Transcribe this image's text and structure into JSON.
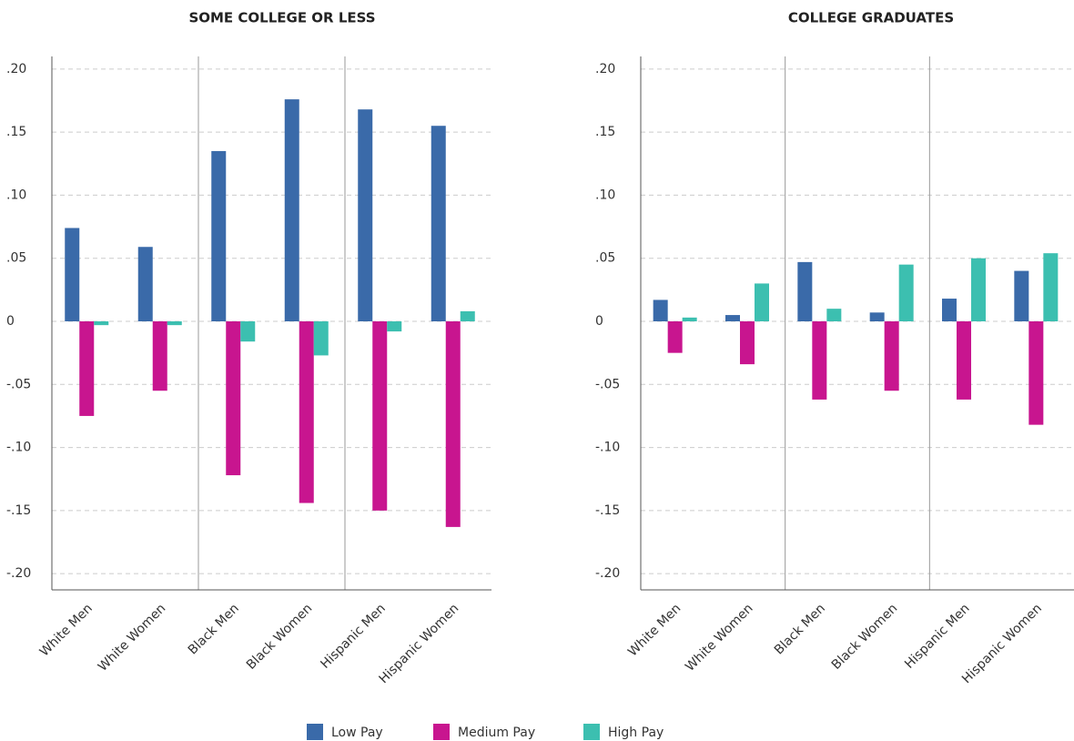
{
  "chart_data": [
    {
      "type": "bar",
      "title": "SOME COLLEGE OR LESS",
      "categories": [
        "White Men",
        "White Women",
        "Black Men",
        "Black Women",
        "Hispanic Men",
        "Hispanic Women"
      ],
      "series": [
        {
          "name": "Low Pay",
          "color": "#3a6aa9",
          "values": [
            0.074,
            0.059,
            0.135,
            0.176,
            0.168,
            0.155
          ]
        },
        {
          "name": "Medium Pay",
          "color": "#c8158f",
          "values": [
            -0.075,
            -0.055,
            -0.122,
            -0.144,
            -0.15,
            -0.163
          ]
        },
        {
          "name": "High Pay",
          "color": "#3cbfb0",
          "values": [
            -0.003,
            -0.003,
            -0.016,
            -0.027,
            -0.008,
            0.008
          ]
        }
      ],
      "ylim": [
        -0.21,
        0.21
      ],
      "yticks": [
        {
          "value": 0.2,
          "label": ".20"
        },
        {
          "value": 0.15,
          "label": ".15"
        },
        {
          "value": 0.1,
          "label": ".10"
        },
        {
          "value": 0.05,
          "label": ".05"
        },
        0,
        {
          "value": -0.05,
          "label": "-.05"
        },
        {
          "value": -0.1,
          "label": "-.10"
        },
        {
          "value": -0.15,
          "label": "-.15"
        },
        {
          "value": -0.2,
          "label": "-.20"
        }
      ],
      "grid": true
    },
    {
      "type": "bar",
      "title": "COLLEGE GRADUATES",
      "categories": [
        "White Men",
        "White Women",
        "Black Men",
        "Black Women",
        "Hispanic Men",
        "Hispanic Women"
      ],
      "series": [
        {
          "name": "Low Pay",
          "color": "#3a6aa9",
          "values": [
            0.017,
            0.005,
            0.047,
            0.007,
            0.018,
            0.04
          ]
        },
        {
          "name": "Medium Pay",
          "color": "#c8158f",
          "values": [
            -0.025,
            -0.034,
            -0.062,
            -0.055,
            -0.062,
            -0.082
          ]
        },
        {
          "name": "High Pay",
          "color": "#3cbfb0",
          "values": [
            0.003,
            0.03,
            0.01,
            0.045,
            0.05,
            0.054
          ]
        }
      ],
      "ylim": [
        -0.21,
        0.21
      ],
      "yticks": [
        {
          "value": 0.2,
          "label": ".20"
        },
        {
          "value": 0.15,
          "label": ".15"
        },
        {
          "value": 0.1,
          "label": ".10"
        },
        {
          "value": 0.05,
          "label": ".05"
        },
        0,
        {
          "value": -0.05,
          "label": "-.05"
        },
        {
          "value": -0.1,
          "label": "-.10"
        },
        {
          "value": -0.15,
          "label": "-.15"
        },
        {
          "value": -0.2,
          "label": "-.20"
        }
      ],
      "grid": true
    }
  ]
}
